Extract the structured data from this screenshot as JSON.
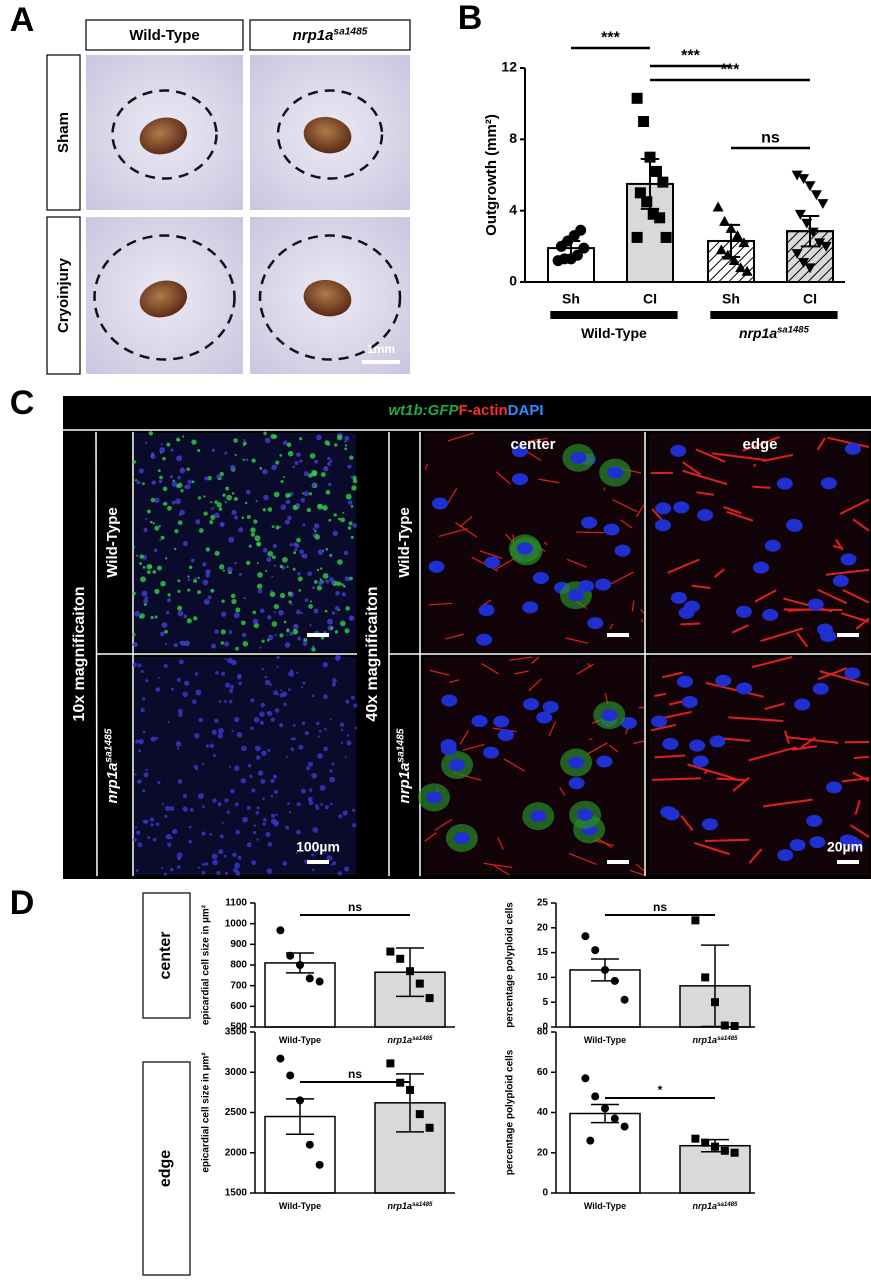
{
  "panel_labels": [
    "A",
    "B",
    "C",
    "D"
  ],
  "panel_a": {
    "columns": [
      {
        "name": "Wild-Type"
      },
      {
        "name": "nrp1a",
        "superscript": "sa1485"
      }
    ],
    "rows": [
      "Sham",
      "Cryoinjury"
    ],
    "scale_bar": "1mm"
  },
  "panel_c": {
    "title_parts": [
      {
        "text": "wt1b:GFP",
        "color": "#1fa845"
      },
      {
        "text": "F-actin",
        "color": "#ff2a2a"
      },
      {
        "text": "DAPI",
        "color": "#2a8cff"
      }
    ],
    "magnifications": [
      "10x magnificaiton",
      "40x magnificaiton"
    ],
    "rows": [
      {
        "name": "Wild-Type"
      },
      {
        "name": "nrp1a",
        "superscript": "sa1485"
      }
    ],
    "columns": [
      "center",
      "edge"
    ],
    "scale_bars": [
      "100µm",
      "20µm"
    ]
  },
  "panel_d": {
    "rows": [
      "center",
      "edge"
    ]
  },
  "chart_data": [
    {
      "type": "bar",
      "ylabel": "Outgrowth (mm²)",
      "categories": [
        "Sh",
        "CI",
        "Sh",
        "CI"
      ],
      "groups": [
        {
          "name": "Wild-Type",
          "from": 0,
          "to": 1
        },
        {
          "name": "nrp1a",
          "superscript": "sa1485",
          "from": 2,
          "to": 3
        }
      ],
      "values": [
        1.9,
        5.5,
        2.3,
        2.85
      ],
      "errors": [
        0.4,
        1.4,
        0.9,
        0.85
      ],
      "points": [
        [
          1.2,
          1.3,
          1.3,
          1.5,
          1.9,
          2.0,
          2.3,
          2.6,
          2.9
        ],
        [
          10.3,
          9.0,
          7.0,
          6.2,
          5.6,
          5.0,
          4.5,
          3.8,
          3.6,
          2.5,
          2.5
        ],
        [
          4.2,
          3.4,
          3.0,
          2.6,
          2.2,
          1.8,
          1.5,
          1.2,
          0.8,
          0.6
        ],
        [
          6.0,
          5.8,
          5.4,
          4.9,
          4.4,
          3.8,
          3.3,
          2.8,
          2.2,
          2.0,
          1.6,
          1.1,
          0.8
        ]
      ],
      "markers": [
        "circle",
        "square",
        "triangle-up",
        "triangle-down"
      ],
      "colors": [
        "#ffffff",
        "#d9d9d9",
        "#ffffff",
        "#d9d9d9"
      ],
      "hatch": [
        false,
        false,
        true,
        true
      ],
      "ylim": [
        0,
        12
      ],
      "yticks": [
        0,
        4,
        8,
        12
      ],
      "annotations": [
        {
          "text": "***",
          "from": 0,
          "to": 1
        },
        {
          "text": "***",
          "from": 1,
          "to": 2
        },
        {
          "text": "***",
          "from": 1,
          "to": 3
        },
        {
          "text": "ns",
          "from": 2,
          "to": 3
        }
      ]
    },
    {
      "type": "bar",
      "ylabel": "epicardial cell size in µm²",
      "categories": [
        "Wild-Type",
        "nrp1a"
      ],
      "category_superscripts": [
        null,
        "sa1485"
      ],
      "values": [
        810,
        765
      ],
      "errors": [
        48,
        117
      ],
      "points": [
        [
          968,
          845,
          800,
          735,
          720
        ],
        [
          865,
          830,
          770,
          710,
          640
        ]
      ],
      "markers": [
        "circle",
        "square"
      ],
      "colors": [
        "#ffffff",
        "#d9d9d9"
      ],
      "hatch": [
        false,
        false
      ],
      "ylim": [
        500,
        1100
      ],
      "yticks": [
        500,
        600,
        700,
        800,
        900,
        1000,
        1100
      ],
      "annotations": [
        {
          "text": "ns",
          "from": 0,
          "to": 1
        }
      ]
    },
    {
      "type": "bar",
      "ylabel": "percentage polyploid cells",
      "categories": [
        "Wild-Type",
        "nrp1a"
      ],
      "category_superscripts": [
        null,
        "sa1485"
      ],
      "values": [
        11.5,
        8.3
      ],
      "errors": [
        2.2,
        8.2
      ],
      "points": [
        [
          18.3,
          15.5,
          11.5,
          9.3,
          5.5
        ],
        [
          21.5,
          10,
          5,
          0.3,
          0.2
        ]
      ],
      "markers": [
        "circle",
        "square"
      ],
      "colors": [
        "#ffffff",
        "#d9d9d9"
      ],
      "hatch": [
        false,
        false
      ],
      "ylim": [
        0,
        25
      ],
      "yticks": [
        0,
        5,
        10,
        15,
        20,
        25
      ],
      "annotations": [
        {
          "text": "ns",
          "from": 0,
          "to": 1
        }
      ]
    },
    {
      "type": "bar",
      "ylabel": "epicardial cell size in µm²",
      "categories": [
        "Wild-Type",
        "nrp1a"
      ],
      "category_superscripts": [
        null,
        "sa1485"
      ],
      "values": [
        2450,
        2620
      ],
      "errors": [
        220,
        360
      ],
      "points": [
        [
          3170,
          2960,
          2650,
          2100,
          1850
        ],
        [
          3110,
          2870,
          2780,
          2480,
          2310
        ]
      ],
      "markers": [
        "circle",
        "square"
      ],
      "colors": [
        "#ffffff",
        "#d9d9d9"
      ],
      "hatch": [
        false,
        false
      ],
      "ylim": [
        1500,
        3500
      ],
      "yticks": [
        1500,
        2000,
        2500,
        3000,
        3500
      ],
      "annotations": [
        {
          "text": "ns",
          "from": 0,
          "to": 1
        }
      ]
    },
    {
      "type": "bar",
      "ylabel": "percentage polyploid cells",
      "categories": [
        "Wild-Type",
        "nrp1a"
      ],
      "category_superscripts": [
        null,
        "sa1485"
      ],
      "values": [
        39.5,
        23.5
      ],
      "errors": [
        4.5,
        3
      ],
      "points": [
        [
          57,
          48,
          42,
          37,
          33,
          26
        ],
        [
          27,
          25,
          23,
          21,
          20
        ]
      ],
      "markers": [
        "circle",
        "square"
      ],
      "colors": [
        "#ffffff",
        "#d9d9d9"
      ],
      "hatch": [
        false,
        false
      ],
      "ylim": [
        0,
        80
      ],
      "yticks": [
        0,
        20,
        40,
        60,
        80
      ],
      "annotations": [
        {
          "text": "*",
          "from": 0,
          "to": 1
        }
      ]
    }
  ]
}
